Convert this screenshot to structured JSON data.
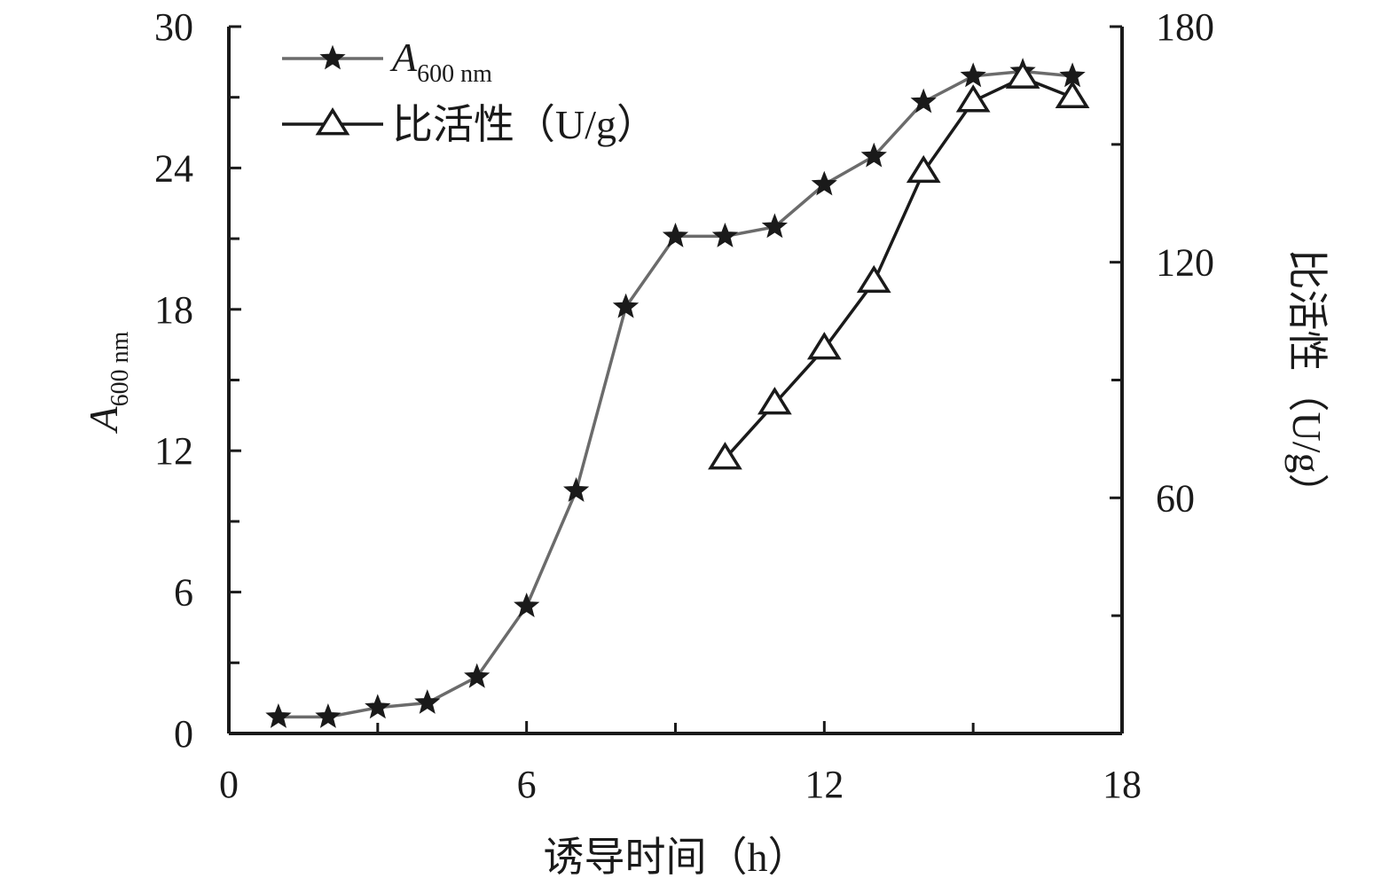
{
  "chart_data": {
    "type": "line",
    "x_axis": {
      "label": "诱导时间（h）",
      "range": [
        0,
        18
      ],
      "ticks": [
        0,
        6,
        12,
        18
      ],
      "minor_ticks": [
        3,
        9,
        15
      ]
    },
    "y_axis_left": {
      "label_main": "A",
      "label_sub": "600 nm",
      "range": [
        0,
        30
      ],
      "ticks": [
        0,
        6,
        12,
        18,
        24,
        30
      ],
      "minor_ticks": [
        3,
        9,
        15,
        21,
        27
      ]
    },
    "y_axis_right": {
      "label": "比活性（U/g）",
      "range": [
        0,
        180
      ],
      "ticks": [
        60,
        120,
        180
      ],
      "minor_ticks": [
        30,
        90,
        150
      ]
    },
    "legend": {
      "placement": "top-left",
      "entries": [
        {
          "main": "A",
          "sub": "600 nm",
          "marker": "star"
        },
        {
          "text": "比活性（U/g）",
          "marker": "triangle"
        }
      ]
    },
    "series": [
      {
        "axis": "left",
        "marker": "star",
        "color": "#6b6b6b",
        "x": [
          1,
          2,
          3,
          4,
          5,
          6,
          7,
          8,
          9,
          10,
          11,
          12,
          13,
          14,
          15,
          16,
          17
        ],
        "values": [
          0.7,
          0.7,
          1.1,
          1.3,
          2.4,
          5.4,
          10.3,
          18.1,
          21.1,
          21.1,
          21.5,
          23.3,
          24.5,
          26.8,
          27.9,
          28.1,
          27.9
        ]
      },
      {
        "axis": "right",
        "marker": "triangle",
        "color": "#1a1a1a",
        "x": [
          10,
          11,
          12,
          13,
          14,
          15,
          16,
          17
        ],
        "values": [
          70,
          84,
          98,
          115,
          143,
          161,
          167,
          162
        ]
      }
    ]
  }
}
